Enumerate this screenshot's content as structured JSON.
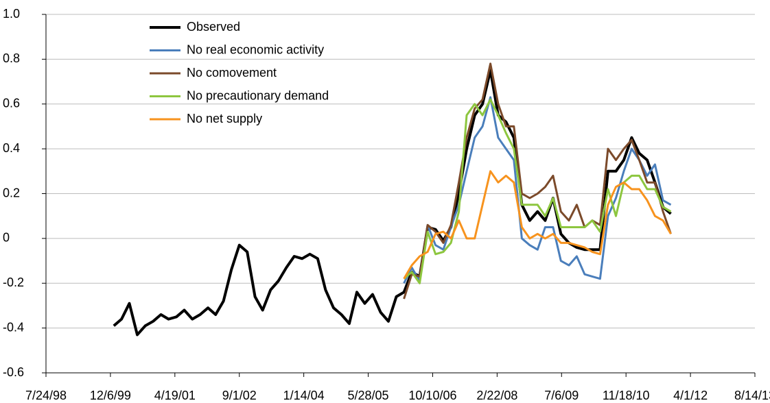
{
  "chart_data": {
    "type": "line",
    "x": [
      "1/1/00",
      "3/1/00",
      "5/1/00",
      "7/1/00",
      "9/1/00",
      "11/1/00",
      "1/1/01",
      "3/1/01",
      "5/1/01",
      "7/1/01",
      "9/1/01",
      "11/1/01",
      "1/1/02",
      "3/1/02",
      "5/1/02",
      "7/1/02",
      "9/1/02",
      "11/1/02",
      "1/1/03",
      "3/1/03",
      "5/1/03",
      "7/1/03",
      "9/1/03",
      "11/1/03",
      "1/1/04",
      "3/1/04",
      "5/1/04",
      "7/1/04",
      "9/1/04",
      "11/1/04",
      "1/1/05",
      "3/1/05",
      "5/1/05",
      "7/1/05",
      "9/1/05",
      "11/1/05",
      "1/1/06",
      "3/1/06",
      "5/1/06",
      "7/1/06",
      "9/1/06",
      "11/1/06",
      "1/1/07",
      "3/1/07",
      "5/1/07",
      "7/1/07",
      "9/1/07",
      "11/1/07",
      "1/1/08",
      "3/1/08",
      "5/1/08",
      "7/1/08",
      "9/1/08",
      "11/1/08",
      "1/1/09",
      "3/1/09",
      "5/1/09",
      "7/1/09",
      "9/1/09",
      "11/1/09",
      "1/1/10",
      "3/1/10",
      "5/1/10",
      "7/1/10",
      "9/1/10",
      "11/1/10",
      "1/1/11",
      "3/1/11",
      "5/1/11",
      "7/1/11",
      "9/1/11",
      "11/1/11"
    ],
    "series": [
      {
        "name": "Observed",
        "color": "#000000",
        "width": 4,
        "values": [
          -0.39,
          -0.36,
          -0.29,
          -0.43,
          -0.39,
          -0.37,
          -0.34,
          -0.36,
          -0.35,
          -0.32,
          -0.36,
          -0.34,
          -0.31,
          -0.34,
          -0.28,
          -0.14,
          -0.03,
          -0.06,
          -0.26,
          -0.32,
          -0.23,
          -0.19,
          -0.13,
          -0.08,
          -0.09,
          -0.07,
          -0.09,
          -0.23,
          -0.31,
          -0.34,
          -0.38,
          -0.24,
          -0.29,
          -0.25,
          -0.33,
          -0.37,
          -0.26,
          -0.24,
          -0.15,
          -0.17,
          0.05,
          0.04,
          -0.01,
          0.05,
          0.2,
          0.4,
          0.55,
          0.6,
          0.75,
          0.55,
          0.52,
          0.45,
          0.15,
          0.08,
          0.12,
          0.08,
          0.18,
          0.02,
          -0.02,
          -0.04,
          -0.05,
          -0.05,
          -0.05,
          0.3,
          0.3,
          0.35,
          0.45,
          0.38,
          0.35,
          0.25,
          0.14,
          0.11
        ]
      },
      {
        "name": "No real economic activity",
        "color": "#4a7ebb",
        "width": 3,
        "values": [
          null,
          null,
          null,
          null,
          null,
          null,
          null,
          null,
          null,
          null,
          null,
          null,
          null,
          null,
          null,
          null,
          null,
          null,
          null,
          null,
          null,
          null,
          null,
          null,
          null,
          null,
          null,
          null,
          null,
          null,
          null,
          null,
          null,
          null,
          null,
          null,
          null,
          -0.2,
          -0.13,
          -0.19,
          0.06,
          -0.03,
          -0.05,
          0.05,
          0.15,
          0.3,
          0.45,
          0.5,
          0.63,
          0.45,
          0.4,
          0.35,
          0.0,
          -0.03,
          -0.05,
          0.05,
          0.05,
          -0.1,
          -0.12,
          -0.08,
          -0.16,
          -0.17,
          -0.18,
          0.1,
          0.18,
          0.3,
          0.4,
          0.35,
          0.28,
          0.33,
          0.17,
          0.15
        ]
      },
      {
        "name": "No comovement",
        "color": "#7b4a2a",
        "width": 3,
        "values": [
          null,
          null,
          null,
          null,
          null,
          null,
          null,
          null,
          null,
          null,
          null,
          null,
          null,
          null,
          null,
          null,
          null,
          null,
          null,
          null,
          null,
          null,
          null,
          null,
          null,
          null,
          null,
          null,
          null,
          null,
          null,
          null,
          null,
          null,
          null,
          null,
          null,
          -0.27,
          -0.16,
          -0.17,
          0.06,
          0.03,
          -0.02,
          0.06,
          0.25,
          0.45,
          0.58,
          0.62,
          0.78,
          0.6,
          0.5,
          0.5,
          0.2,
          0.18,
          0.2,
          0.23,
          0.28,
          0.12,
          0.08,
          0.15,
          0.05,
          0.08,
          0.06,
          0.4,
          0.35,
          0.4,
          0.44,
          0.35,
          0.25,
          0.25,
          0.12,
          0.02
        ]
      },
      {
        "name": "No precautionary demand",
        "color": "#8dc63f",
        "width": 3,
        "values": [
          null,
          null,
          null,
          null,
          null,
          null,
          null,
          null,
          null,
          null,
          null,
          null,
          null,
          null,
          null,
          null,
          null,
          null,
          null,
          null,
          null,
          null,
          null,
          null,
          null,
          null,
          null,
          null,
          null,
          null,
          null,
          null,
          null,
          null,
          null,
          null,
          null,
          -0.18,
          -0.15,
          -0.2,
          0.03,
          -0.07,
          -0.06,
          -0.02,
          0.12,
          0.55,
          0.6,
          0.55,
          0.62,
          0.55,
          0.47,
          0.4,
          0.15,
          0.15,
          0.15,
          0.1,
          0.18,
          0.05,
          0.05,
          0.05,
          0.05,
          0.08,
          0.03,
          0.22,
          0.1,
          0.25,
          0.28,
          0.28,
          0.22,
          0.22,
          0.14,
          0.12
        ]
      },
      {
        "name": "No net supply",
        "color": "#f7931e",
        "width": 3,
        "values": [
          null,
          null,
          null,
          null,
          null,
          null,
          null,
          null,
          null,
          null,
          null,
          null,
          null,
          null,
          null,
          null,
          null,
          null,
          null,
          null,
          null,
          null,
          null,
          null,
          null,
          null,
          null,
          null,
          null,
          null,
          null,
          null,
          null,
          null,
          null,
          null,
          null,
          -0.18,
          -0.12,
          -0.08,
          -0.06,
          0.02,
          0.03,
          0.0,
          0.08,
          0.0,
          0.0,
          0.15,
          0.3,
          0.25,
          0.28,
          0.25,
          0.05,
          0.0,
          0.02,
          0.0,
          0.02,
          -0.02,
          -0.02,
          -0.03,
          -0.04,
          -0.06,
          -0.07,
          0.15,
          0.23,
          0.25,
          0.22,
          0.22,
          0.17,
          0.1,
          0.08,
          0.02
        ]
      }
    ],
    "xlim": [
      "7/24/98",
      "8/14/13"
    ],
    "xticks": [
      "7/24/98",
      "12/6/99",
      "4/19/01",
      "9/1/02",
      "1/14/04",
      "5/28/05",
      "10/10/06",
      "2/22/08",
      "7/6/09",
      "11/18/10",
      "4/1/12",
      "8/14/13"
    ],
    "ylim": [
      -0.6,
      1
    ],
    "yticks": [
      -0.6,
      -0.4,
      -0.2,
      0,
      0.2,
      0.4,
      0.6,
      0.8,
      {
        "value": 1,
        "label": "1.0"
      }
    ],
    "grid": true,
    "legend": "upper-left"
  }
}
